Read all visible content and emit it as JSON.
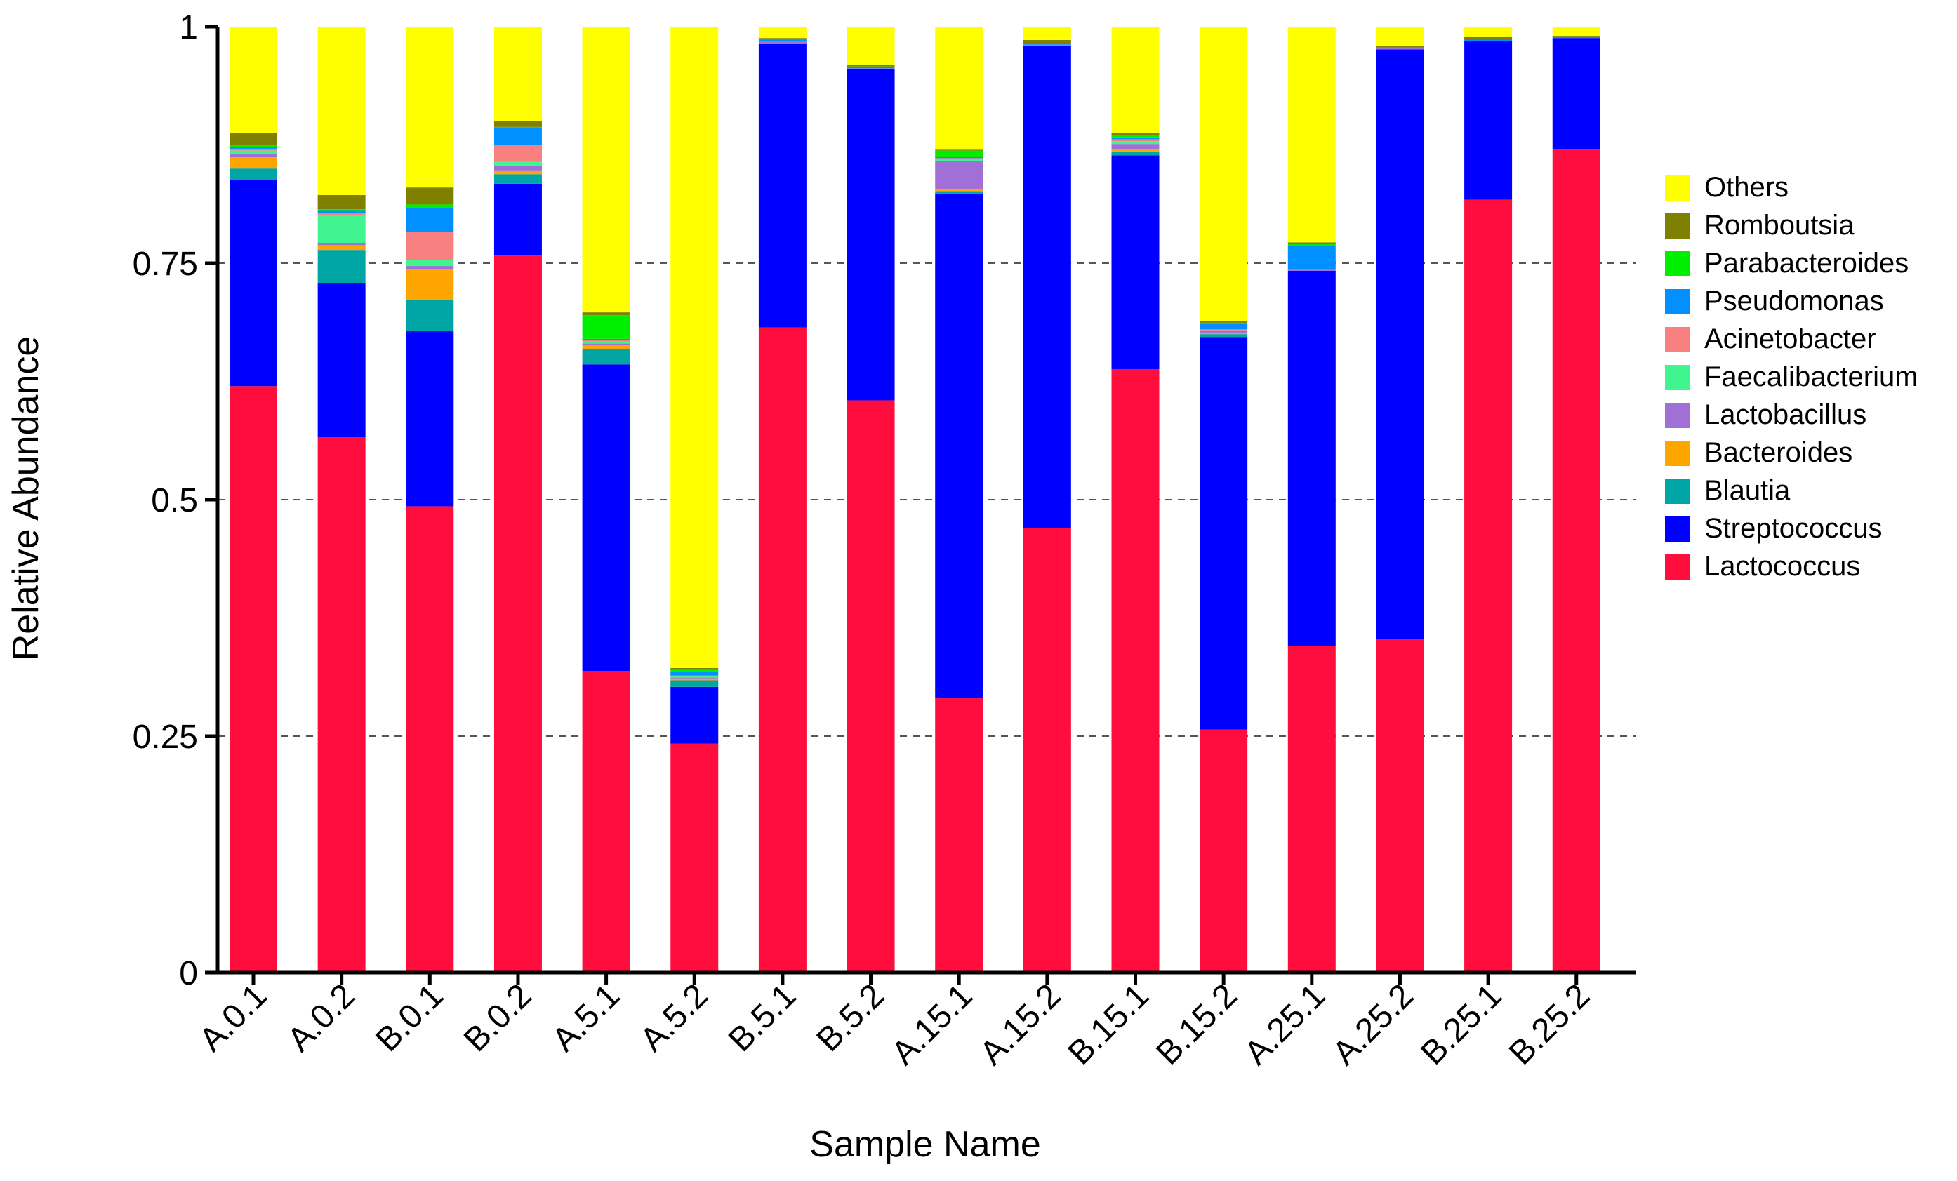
{
  "chart_data": {
    "type": "bar",
    "stacked": true,
    "title": "",
    "xlabel": "Sample Name",
    "ylabel": "Relative Abundance",
    "ylim": [
      0,
      1
    ],
    "yticks": [
      {
        "value": 0,
        "label": "0"
      },
      {
        "value": 0.25,
        "label": "0.25"
      },
      {
        "value": 0.5,
        "label": "0.5"
      },
      {
        "value": 0.75,
        "label": "0.75"
      },
      {
        "value": 1,
        "label": "1"
      }
    ],
    "grid": "dashed horizontal at 0.25, 0.5, 0.75",
    "legend_position": "right",
    "categories": [
      "A.0.1",
      "A.0.2",
      "B.0.1",
      "B.0.2",
      "A.5.1",
      "A.5.2",
      "B.5.1",
      "B.5.2",
      "A.15.1",
      "A.15.2",
      "B.15.1",
      "B.15.2",
      "A.25.1",
      "A.25.2",
      "B.25.1",
      "B.25.2"
    ],
    "series": [
      {
        "name": "Lactococcus",
        "color": "#FF0D3C",
        "values": [
          0.62,
          0.566,
          0.493,
          0.758,
          0.319,
          0.242,
          0.682,
          0.605,
          0.29,
          0.47,
          0.638,
          0.257,
          0.345,
          0.353,
          0.817,
          0.87
        ]
      },
      {
        "name": "Streptococcus",
        "color": "#0000FF",
        "values": [
          0.218,
          0.163,
          0.185,
          0.076,
          0.324,
          0.06,
          0.3,
          0.35,
          0.533,
          0.51,
          0.226,
          0.415,
          0.397,
          0.623,
          0.168,
          0.118
        ]
      },
      {
        "name": "Blautia",
        "color": "#00A6A6",
        "values": [
          0.012,
          0.035,
          0.033,
          0.01,
          0.016,
          0.007,
          0.0,
          0.0,
          0.003,
          0.0,
          0.004,
          0.003,
          0.0,
          0.0,
          0.0,
          0.0
        ]
      },
      {
        "name": "Bacteroides",
        "color": "#FFA500",
        "values": [
          0.012,
          0.005,
          0.033,
          0.004,
          0.004,
          0.002,
          0.0,
          0.0,
          0.002,
          0.0,
          0.002,
          0.001,
          0.0,
          0.0,
          0.0,
          0.0
        ]
      },
      {
        "name": "Lactobacillus",
        "color": "#A070D6",
        "values": [
          0.003,
          0.002,
          0.003,
          0.005,
          0.002,
          0.001,
          0.003,
          0.001,
          0.03,
          0.001,
          0.006,
          0.003,
          0.002,
          0.001,
          0.0,
          0.0
        ]
      },
      {
        "name": "Faecalibacterium",
        "color": "#40F590",
        "values": [
          0.004,
          0.03,
          0.006,
          0.004,
          0.002,
          0.001,
          0.0,
          0.0,
          0.002,
          0.0,
          0.003,
          0.0,
          0.0,
          0.0,
          0.0,
          0.0
        ]
      },
      {
        "name": "Acinetobacter",
        "color": "#F88080",
        "values": [
          0.002,
          0.002,
          0.03,
          0.018,
          0.002,
          0.001,
          0.0,
          0.0,
          0.001,
          0.0,
          0.002,
          0.001,
          0.0,
          0.0,
          0.0,
          0.0
        ]
      },
      {
        "name": "Pseudomonas",
        "color": "#0090FF",
        "values": [
          0.002,
          0.003,
          0.025,
          0.018,
          0.001,
          0.004,
          0.001,
          0.001,
          0.001,
          0.001,
          0.002,
          0.006,
          0.025,
          0.001,
          0.002,
          0.001
        ]
      },
      {
        "name": "Parabacteroides",
        "color": "#00EE00",
        "values": [
          0.002,
          0.001,
          0.004,
          0.001,
          0.025,
          0.002,
          0.0,
          0.001,
          0.007,
          0.0,
          0.002,
          0.001,
          0.001,
          0.0,
          0.0,
          0.0
        ]
      },
      {
        "name": "Romboutsia",
        "color": "#808000",
        "values": [
          0.013,
          0.015,
          0.018,
          0.006,
          0.003,
          0.002,
          0.002,
          0.002,
          0.001,
          0.004,
          0.003,
          0.002,
          0.002,
          0.002,
          0.002,
          0.001
        ]
      },
      {
        "name": "Others",
        "color": "#FFFF00",
        "values": [
          0.112,
          0.178,
          0.17,
          0.1,
          0.302,
          0.678,
          0.012,
          0.04,
          0.13,
          0.014,
          0.112,
          0.311,
          0.228,
          0.02,
          0.011,
          0.01
        ]
      }
    ]
  }
}
